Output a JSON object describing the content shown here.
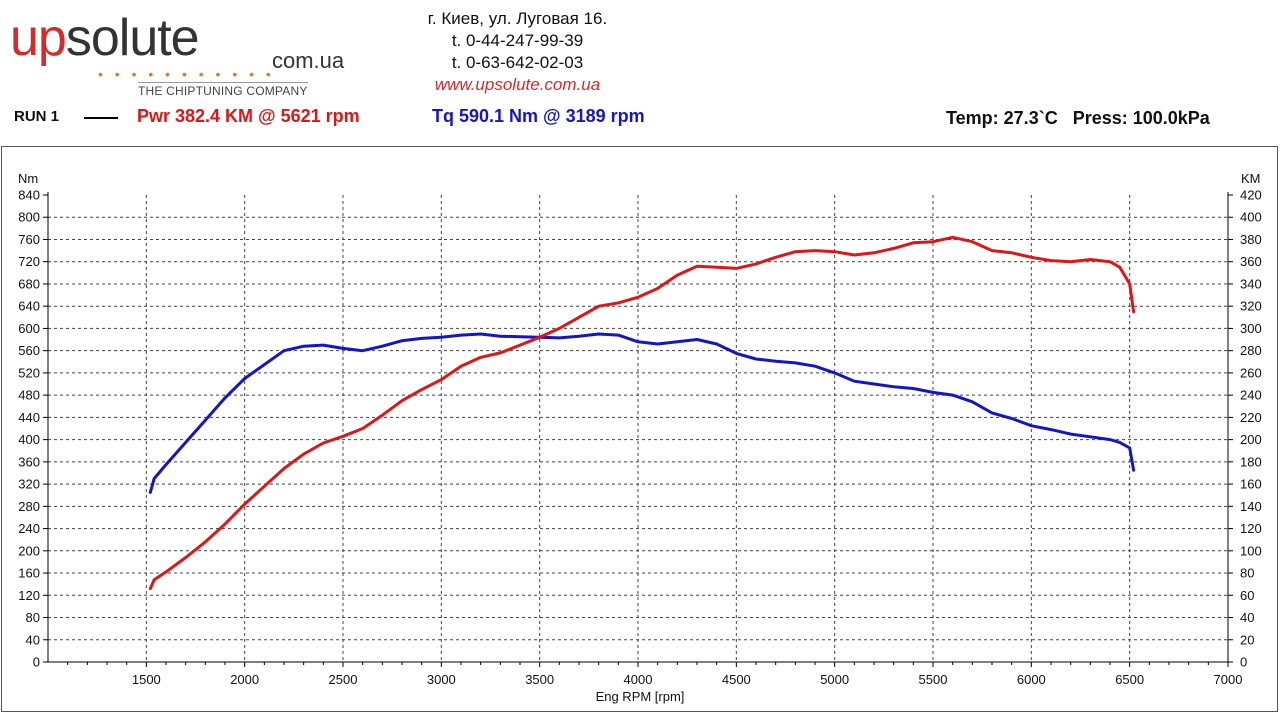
{
  "header": {
    "logo_main_red": "up",
    "logo_main_dark": "solute",
    "logo_domain": "com.ua",
    "logo_tagline": "THE CHIPTUNING COMPANY",
    "address_line": "г. Киев, ул. Луговая 16.",
    "phone_1": "t. 0-44-247-99-39",
    "phone_2": "t. 0-63-642-02-03",
    "website": "www.upsolute.com.ua"
  },
  "run": {
    "label": "RUN 1",
    "pwr_text": "Pwr  382.4 KM @ 5621 rpm",
    "tq_text": "Tq 590.1 Nm @ 3189 rpm",
    "conditions_text": "Temp: 27.3`C   Press: 100.0kPa"
  },
  "chart_data": {
    "type": "line",
    "xlabel": "Eng RPM [rpm]",
    "ylabel_left": "Nm",
    "ylabel_right": "KM",
    "xlim": [
      1000,
      7000
    ],
    "ylim_left": [
      0,
      840
    ],
    "ylim_right": [
      0,
      420
    ],
    "x_ticks": [
      1500,
      2000,
      2500,
      3000,
      3500,
      4000,
      4500,
      5000,
      5500,
      6000,
      6500,
      7000
    ],
    "y_ticks_left": [
      0,
      40,
      80,
      120,
      160,
      200,
      240,
      280,
      320,
      360,
      400,
      440,
      480,
      520,
      560,
      600,
      640,
      680,
      720,
      760,
      800,
      840
    ],
    "y_ticks_right": [
      0,
      20,
      40,
      60,
      80,
      100,
      120,
      140,
      160,
      180,
      200,
      220,
      240,
      260,
      280,
      300,
      320,
      340,
      360,
      380,
      400,
      420
    ],
    "grid": true,
    "series": [
      {
        "name": "Tq",
        "axis": "left",
        "color": "#1414cc",
        "x": [
          1520,
          1540,
          1600,
          1700,
          1800,
          1900,
          2000,
          2100,
          2200,
          2300,
          2400,
          2500,
          2600,
          2700,
          2800,
          2900,
          3000,
          3100,
          3200,
          3300,
          3400,
          3500,
          3600,
          3700,
          3800,
          3900,
          4000,
          4100,
          4200,
          4300,
          4400,
          4500,
          4600,
          4700,
          4800,
          4900,
          5000,
          5100,
          5200,
          5300,
          5400,
          5500,
          5600,
          5700,
          5800,
          5900,
          6000,
          6100,
          6200,
          6300,
          6400,
          6450,
          6500,
          6520
        ],
        "y": [
          305,
          330,
          355,
          395,
          435,
          475,
          510,
          535,
          560,
          568,
          570,
          564,
          560,
          568,
          578,
          582,
          584,
          588,
          590,
          586,
          585,
          584,
          583,
          586,
          590,
          588,
          576,
          572,
          576,
          580,
          572,
          555,
          545,
          541,
          538,
          532,
          520,
          505,
          500,
          495,
          492,
          485,
          480,
          468,
          448,
          438,
          425,
          418,
          410,
          405,
          400,
          395,
          385,
          345
        ]
      },
      {
        "name": "Pwr",
        "axis": "right",
        "color": "#e01515",
        "x": [
          1520,
          1540,
          1600,
          1700,
          1800,
          1900,
          2000,
          2100,
          2200,
          2300,
          2400,
          2500,
          2600,
          2700,
          2800,
          2900,
          3000,
          3100,
          3200,
          3300,
          3400,
          3500,
          3600,
          3700,
          3800,
          3900,
          4000,
          4100,
          4200,
          4300,
          4400,
          4500,
          4600,
          4700,
          4800,
          4900,
          5000,
          5100,
          5200,
          5300,
          5400,
          5500,
          5600,
          5700,
          5800,
          5900,
          6000,
          6100,
          6200,
          6300,
          6400,
          6450,
          6500,
          6520
        ],
        "y": [
          66,
          74,
          81,
          94,
          108,
          124,
          142,
          158,
          174,
          187,
          197,
          203,
          210,
          222,
          235,
          245,
          254,
          266,
          274,
          278,
          285,
          292,
          300,
          310,
          320,
          323,
          328,
          336,
          348,
          356,
          355,
          354,
          358,
          364,
          369,
          370,
          369,
          366,
          368,
          372,
          377,
          378,
          382,
          378,
          370,
          368,
          364,
          361,
          360,
          362,
          360,
          355,
          340,
          315
        ]
      }
    ]
  }
}
